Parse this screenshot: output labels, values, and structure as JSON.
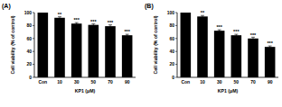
{
  "chart_data": [
    {
      "type": "bar",
      "title": "(A)",
      "x_label": "KP1 (μM)",
      "y_label": "Cell viability (% of control)",
      "categories": [
        "Con",
        "10",
        "30",
        "50",
        "70",
        "90"
      ],
      "values": [
        100,
        92,
        83,
        81,
        79,
        65
      ],
      "errors": [
        1,
        1.5,
        1.5,
        1.5,
        2,
        1.5
      ],
      "annotations": [
        null,
        "**",
        "***",
        "***",
        "***",
        "***"
      ],
      "color": "#000000",
      "ylim": [
        0,
        100
      ],
      "yticks": [
        0,
        20,
        40,
        60,
        80,
        100
      ]
    },
    {
      "type": "bar",
      "title": "(B)",
      "x_label": "KP1 (μM)",
      "y_label": "Cell viability (% of control)",
      "categories": [
        "Con",
        "10",
        "30",
        "50",
        "70",
        "90"
      ],
      "values": [
        100,
        94,
        72,
        65,
        60,
        47
      ],
      "errors": [
        1,
        1.5,
        1.5,
        1.5,
        2,
        1.5
      ],
      "annotations": [
        null,
        "**",
        "***",
        "***",
        "***",
        "***"
      ],
      "color": "#000000",
      "ylim": [
        0,
        100
      ],
      "yticks": [
        0,
        20,
        40,
        60,
        80,
        100
      ]
    }
  ]
}
